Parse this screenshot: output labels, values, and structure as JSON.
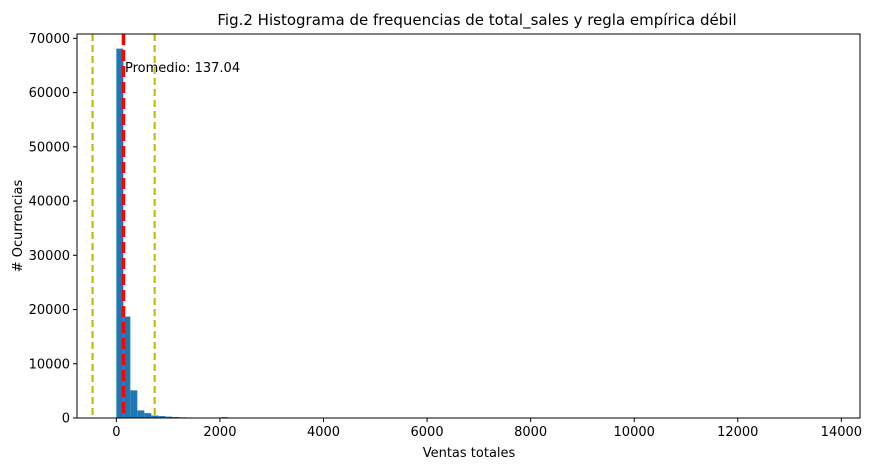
{
  "chart_data": {
    "type": "bar",
    "title": "Fig.2 Histograma de frequencias de total_sales y regla empírica débil",
    "xlabel": "Ventas totales",
    "ylabel": "# Ocurrencias",
    "xlim": [
      -760,
      14360
    ],
    "ylim": [
      0,
      70800
    ],
    "x_ticks": [
      0,
      2000,
      4000,
      6000,
      8000,
      10000,
      12000,
      14000
    ],
    "x_tick_labels": [
      "0",
      "2000",
      "4000",
      "6000",
      "8000",
      "10000",
      "12000",
      "14000"
    ],
    "y_ticks": [
      0,
      10000,
      20000,
      30000,
      40000,
      50000,
      60000,
      70000
    ],
    "y_tick_labels": [
      "0",
      "10000",
      "20000",
      "30000",
      "40000",
      "50000",
      "60000",
      "70000"
    ],
    "grid": false,
    "bin_width": 135,
    "bins_start": 0,
    "values": [
      68100,
      18700,
      5100,
      1400,
      900,
      450,
      350,
      250,
      180,
      130,
      100,
      80,
      60,
      50,
      40,
      160,
      30,
      20,
      15,
      12,
      10,
      8,
      6,
      5,
      4,
      3,
      3,
      2,
      2,
      2
    ],
    "bar_color": "#1f77b4",
    "mean": 137.04,
    "mean_line_color": "#ff0000",
    "mean_annotation": "Promedio: 137.04",
    "rule_lines": [
      -460,
      740
    ],
    "rule_line_color": "#bfbf00"
  }
}
